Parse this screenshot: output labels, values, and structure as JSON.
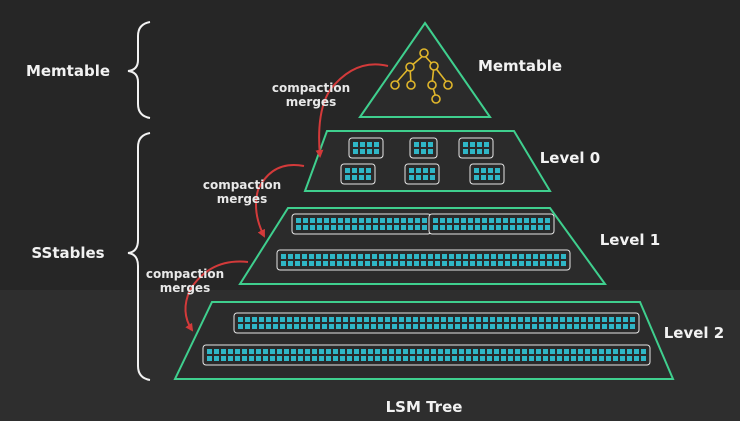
{
  "caption": "LSM Tree",
  "groups": {
    "memtable": "Memtable",
    "sstables": "SStables"
  },
  "levels": {
    "memtable": "Memtable",
    "level0": "Level 0",
    "level1": "Level 1",
    "level2": "Level 2"
  },
  "compaction": {
    "line1": "compaction",
    "line2": "merges"
  },
  "colors": {
    "background": "#262626",
    "pyramid_stroke": "#3fcf8e",
    "pyramid_fill": "#2b2b2b",
    "cell": "#2fb6c6",
    "arrow": "#d33a3a",
    "tree_node": "#e0b62b",
    "text": "#f2f2f2"
  }
}
